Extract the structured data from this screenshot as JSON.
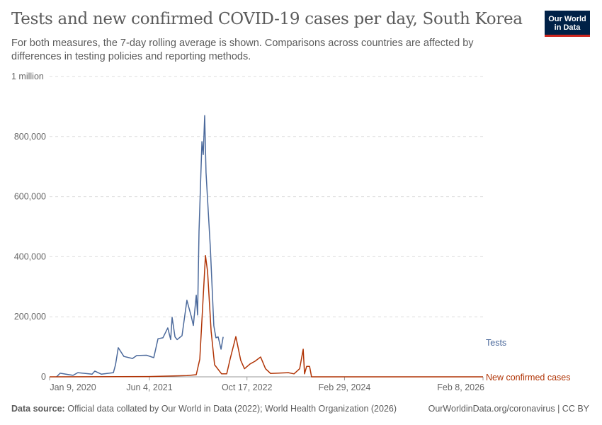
{
  "header": {
    "title": "Tests and new confirmed COVID-19 cases per day, South Korea",
    "subtitle": "For both measures, the 7-day rolling average is shown. Comparisons across countries are affected by differences in testing policies and reporting methods.",
    "logo_text": "Our World in Data"
  },
  "footer": {
    "source_label": "Data source:",
    "source_text": "Official data collated by Our World in Data (2022); World Health Organization (2026)",
    "link": "OurWorldinData.org/coronavirus | CC BY"
  },
  "chart_data": {
    "type": "line",
    "title": "Tests and new confirmed COVID-19 cases per day, South Korea",
    "xlim": [
      "2020-01-09",
      "2026-02-08"
    ],
    "ylim": [
      0,
      1000000
    ],
    "grid": true,
    "legend_placement": "right (labels at line ends)",
    "x_ticks": [
      {
        "date": "2020-01-09",
        "label": "Jan 9, 2020"
      },
      {
        "date": "2021-06-04",
        "label": "Jun 4, 2021"
      },
      {
        "date": "2022-10-17",
        "label": "Oct 17, 2022"
      },
      {
        "date": "2024-02-29",
        "label": "Feb 29, 2024"
      },
      {
        "date": "2026-02-08",
        "label": "Feb 8, 2026"
      }
    ],
    "y_ticks": [
      {
        "value": 0,
        "label": "0"
      },
      {
        "value": 200000,
        "label": "200,000"
      },
      {
        "value": 400000,
        "label": "400,000"
      },
      {
        "value": 600000,
        "label": "600,000"
      },
      {
        "value": 800000,
        "label": "800,000"
      },
      {
        "value": 1000000,
        "label": "1 million"
      }
    ],
    "series": [
      {
        "name": "Tests",
        "color": "#4c6a9c",
        "points": [
          [
            "2020-02-14",
            0
          ],
          [
            "2020-03-03",
            12000
          ],
          [
            "2020-04-02",
            9000
          ],
          [
            "2020-05-08",
            5000
          ],
          [
            "2020-06-02",
            14000
          ],
          [
            "2020-08-14",
            9000
          ],
          [
            "2020-08-28",
            19000
          ],
          [
            "2020-09-30",
            9000
          ],
          [
            "2020-12-01",
            14000
          ],
          [
            "2020-12-12",
            40000
          ],
          [
            "2020-12-26",
            97000
          ],
          [
            "2021-01-24",
            68000
          ],
          [
            "2021-03-09",
            61000
          ],
          [
            "2021-03-31",
            71000
          ],
          [
            "2021-05-20",
            72000
          ],
          [
            "2021-06-26",
            64000
          ],
          [
            "2021-07-18",
            127000
          ],
          [
            "2021-08-12",
            130000
          ],
          [
            "2021-09-06",
            163000
          ],
          [
            "2021-09-21",
            124000
          ],
          [
            "2021-09-28",
            198000
          ],
          [
            "2021-10-13",
            133000
          ],
          [
            "2021-10-24",
            124000
          ],
          [
            "2021-11-18",
            137000
          ],
          [
            "2021-12-13",
            255000
          ],
          [
            "2022-01-04",
            202000
          ],
          [
            "2022-01-15",
            171000
          ],
          [
            "2022-01-30",
            272000
          ],
          [
            "2022-02-06",
            206000
          ],
          [
            "2022-02-13",
            484000
          ],
          [
            "2022-02-28",
            783000
          ],
          [
            "2022-03-07",
            740000
          ],
          [
            "2022-03-14",
            870000
          ],
          [
            "2022-03-21",
            680000
          ],
          [
            "2022-04-12",
            430000
          ],
          [
            "2022-04-30",
            170000
          ],
          [
            "2022-05-11",
            130000
          ],
          [
            "2022-05-22",
            133000
          ],
          [
            "2022-06-06",
            92000
          ],
          [
            "2022-06-17",
            133000
          ]
        ]
      },
      {
        "name": "New confirmed cases",
        "color": "#b13507",
        "points": [
          [
            "2020-01-09",
            0
          ],
          [
            "2021-06-01",
            1000
          ],
          [
            "2021-12-13",
            4000
          ],
          [
            "2022-01-30",
            7000
          ],
          [
            "2022-02-17",
            59000
          ],
          [
            "2022-03-18",
            404000
          ],
          [
            "2022-03-29",
            350000
          ],
          [
            "2022-04-16",
            152000
          ],
          [
            "2022-05-04",
            40000
          ],
          [
            "2022-06-09",
            10000
          ],
          [
            "2022-07-05",
            10000
          ],
          [
            "2022-07-23",
            60000
          ],
          [
            "2022-08-21",
            134000
          ],
          [
            "2022-09-15",
            55000
          ],
          [
            "2022-10-04",
            27000
          ],
          [
            "2022-11-02",
            43000
          ],
          [
            "2022-11-27",
            52000
          ],
          [
            "2022-12-26",
            66000
          ],
          [
            "2023-01-20",
            27000
          ],
          [
            "2023-02-15",
            11000
          ],
          [
            "2023-05-17",
            14000
          ],
          [
            "2023-06-15",
            10000
          ],
          [
            "2023-07-14",
            27000
          ],
          [
            "2023-08-01",
            92000
          ],
          [
            "2023-08-08",
            10000
          ],
          [
            "2023-08-19",
            35000
          ],
          [
            "2023-09-03",
            35000
          ],
          [
            "2023-09-13",
            0
          ],
          [
            "2026-02-08",
            0
          ]
        ]
      }
    ]
  }
}
